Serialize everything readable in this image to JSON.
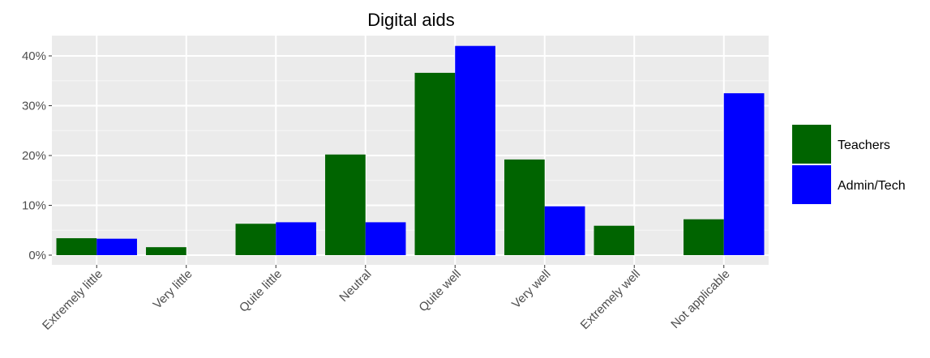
{
  "chart_data": {
    "type": "bar",
    "title": "Digital aids",
    "xlabel": "",
    "ylabel": "",
    "categories": [
      "Extremely little",
      "Very little",
      "Quite little",
      "Neutral",
      "Quite well",
      "Very well",
      "Extremely well",
      "Not applicable"
    ],
    "series": [
      {
        "name": "Teachers",
        "color": "#006400",
        "values": [
          3.4,
          1.6,
          6.3,
          20.2,
          36.6,
          19.2,
          5.9,
          7.2
        ]
      },
      {
        "name": "Admin/Tech",
        "color": "#0000ff",
        "values": [
          3.3,
          0,
          6.6,
          6.6,
          42.0,
          9.8,
          0,
          32.5
        ]
      }
    ],
    "ylim": [
      0,
      44
    ],
    "yticks": [
      0,
      10,
      20,
      30,
      40
    ],
    "ytick_labels": [
      "0%",
      "10%",
      "20%",
      "30%",
      "40%"
    ],
    "grid": true,
    "legend": "right",
    "panel_color": "#ebebeb"
  }
}
